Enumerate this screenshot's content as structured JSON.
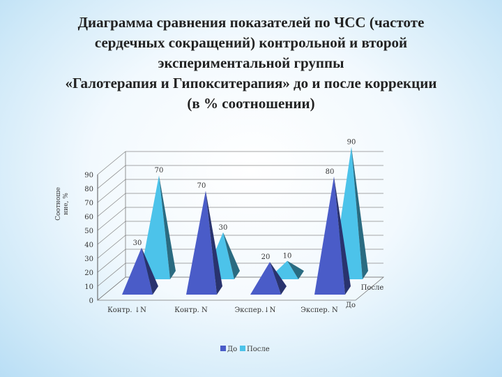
{
  "title_lines": [
    "Диаграмма сравнения показателей по ЧСС (частоте",
    "сердечных сокращений) контрольной и второй",
    "экспериментальной группы",
    "«Галотерапия и Гипокситерапия» до и после коррекции",
    "(в % соотношении)"
  ],
  "chart_data": {
    "type": "bar",
    "style": "3d-pyramid",
    "categories": [
      "Контр. ↓N",
      "Контр. N",
      "Экспер.↓N",
      "Экспер. N"
    ],
    "series": [
      {
        "name": "До",
        "values": [
          30,
          70,
          20,
          80
        ],
        "color": "#4a5cc8"
      },
      {
        "name": "После",
        "values": [
          70,
          30,
          10,
          90
        ],
        "color": "#4cc3ea"
      }
    ],
    "ylabel": "Соотноше ние, %",
    "ylabel_lines": [
      "Соотноше",
      "ние, %"
    ],
    "yticks": [
      "0",
      "10",
      "20",
      "30",
      "40",
      "50",
      "60",
      "70",
      "80",
      "90"
    ],
    "ylim": [
      0,
      90
    ],
    "depth_labels": [
      "До",
      "После"
    ],
    "legend_position": "bottom",
    "grid": true
  }
}
